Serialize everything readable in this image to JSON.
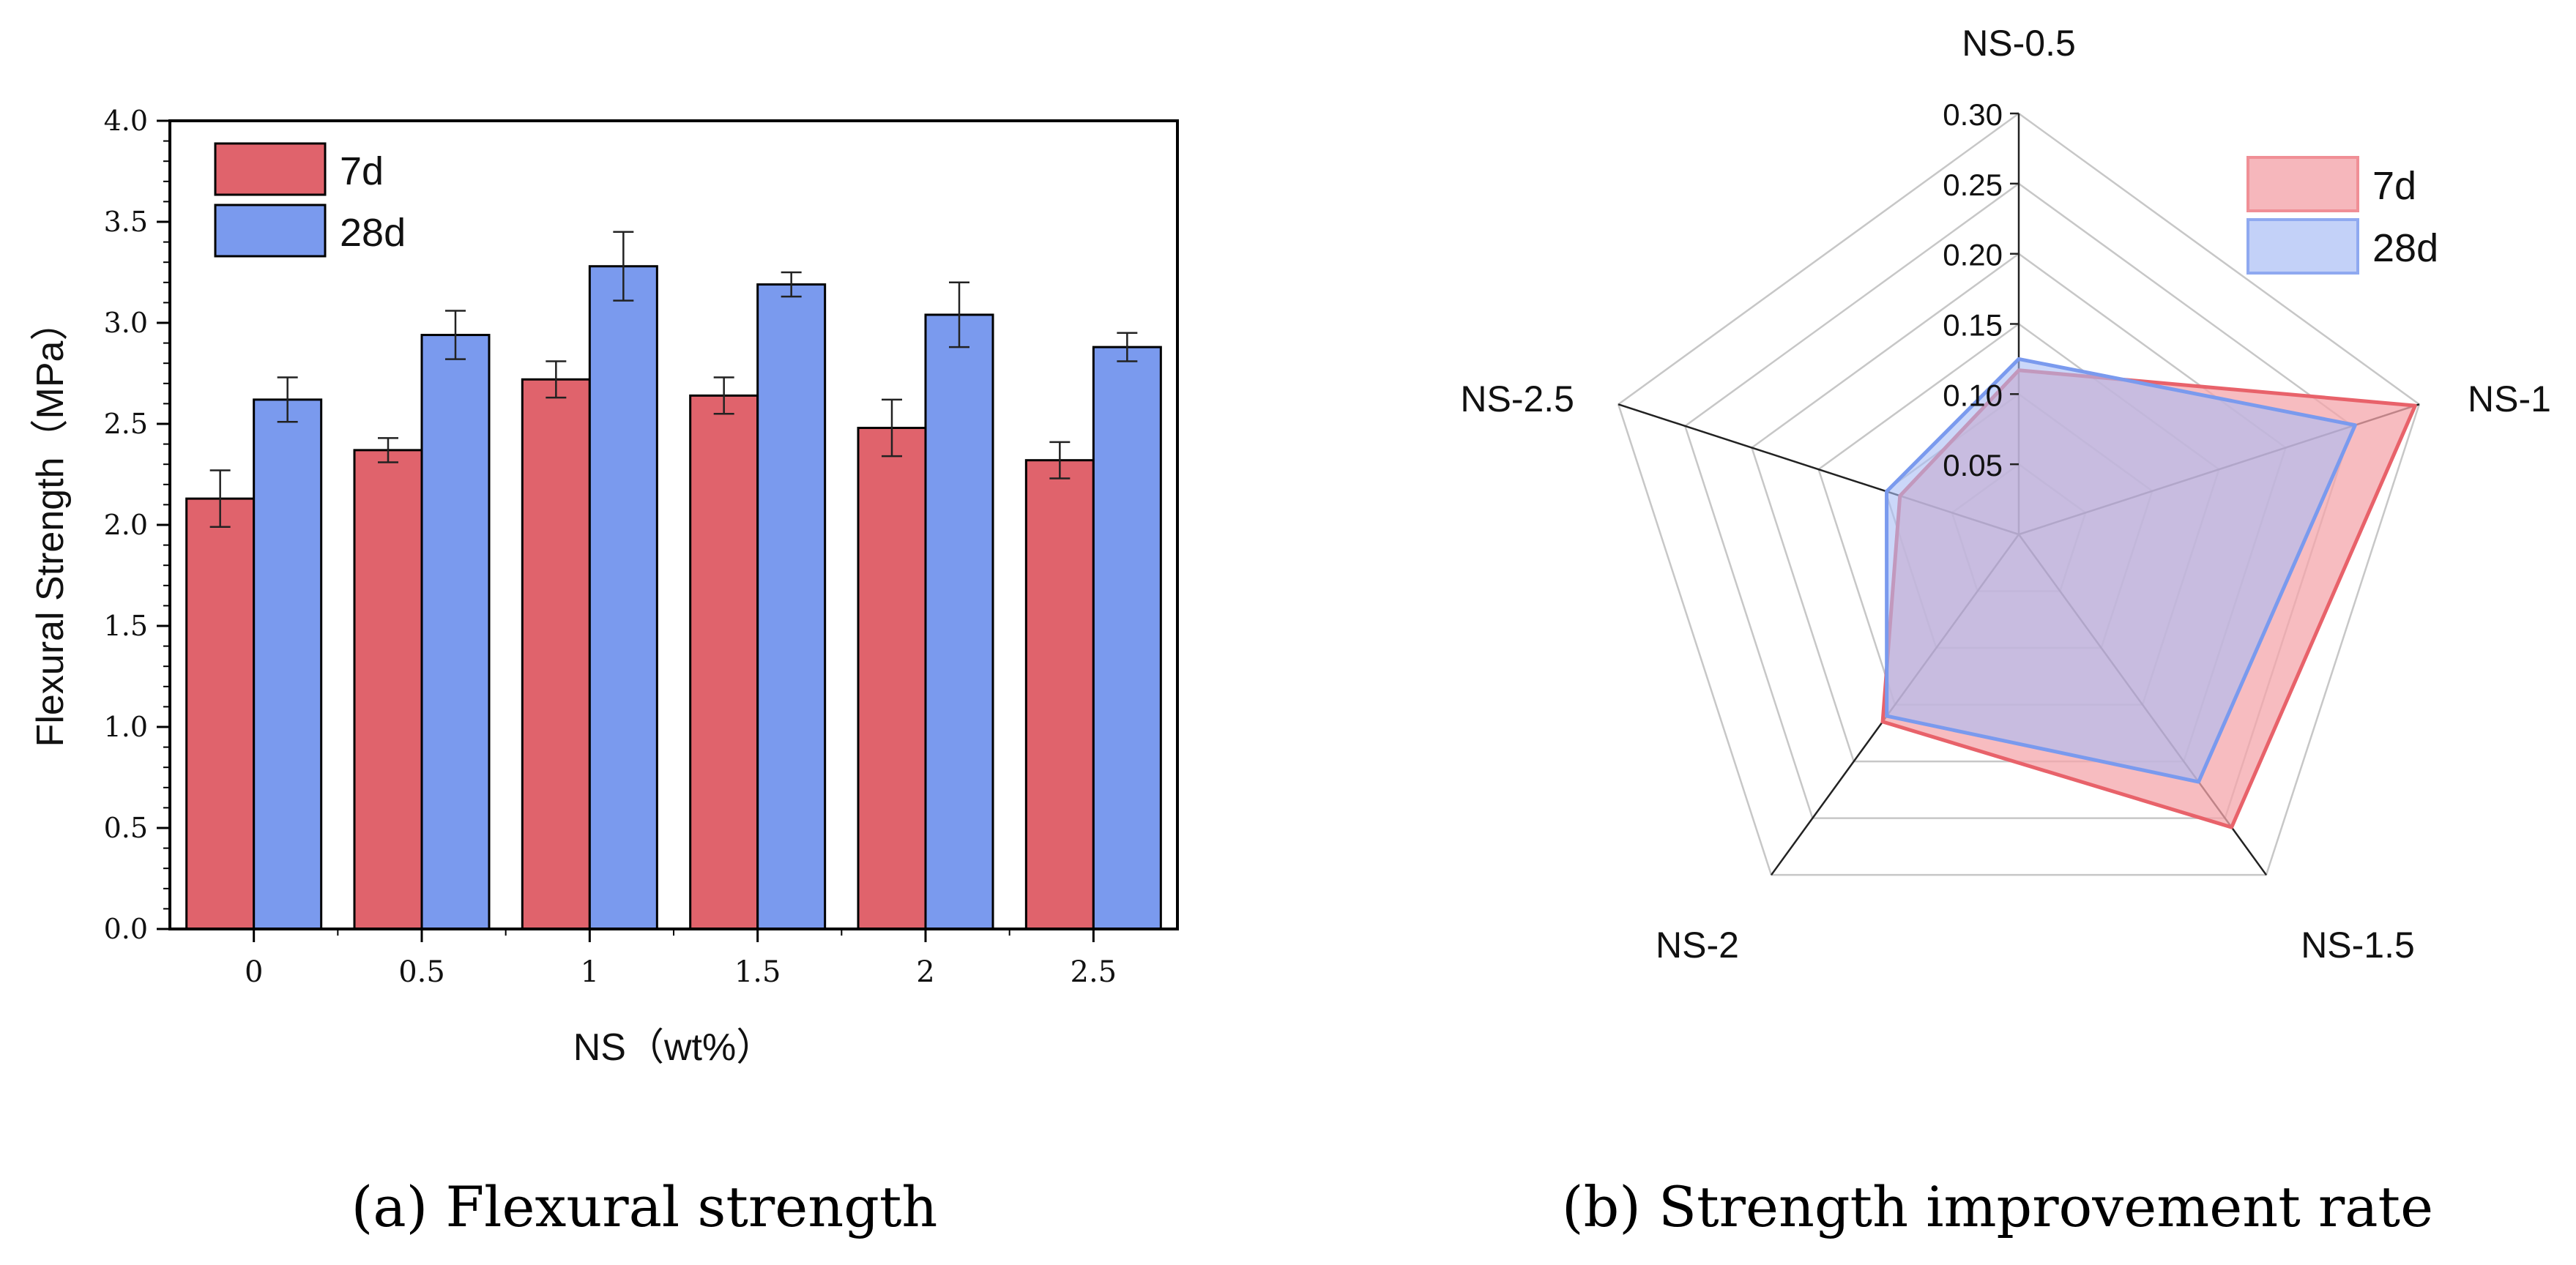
{
  "chart_data": [
    {
      "type": "bar",
      "title": "",
      "xlabel": "NS（wt%）",
      "ylabel": "Flexural Strength（MPa）",
      "categories": [
        "0",
        "0.5",
        "1",
        "1.5",
        "2",
        "2.5"
      ],
      "ylim": [
        0,
        4.0
      ],
      "yticks": [
        "0.0",
        "0.5",
        "1.0",
        "1.5",
        "2.0",
        "2.5",
        "3.0",
        "3.5",
        "4.0"
      ],
      "yticks_values": [
        0,
        0.5,
        1.0,
        1.5,
        2.0,
        2.5,
        3.0,
        3.5,
        4.0
      ],
      "series": [
        {
          "name": "7d",
          "color": "#e0636c",
          "values": [
            2.13,
            2.37,
            2.72,
            2.64,
            2.48,
            2.32
          ],
          "errors": [
            0.14,
            0.06,
            0.09,
            0.09,
            0.14,
            0.09
          ]
        },
        {
          "name": "28d",
          "color": "#7a9aee",
          "values": [
            2.62,
            2.94,
            3.28,
            3.19,
            3.04,
            2.88
          ],
          "errors": [
            0.11,
            0.12,
            0.17,
            0.06,
            0.16,
            0.07
          ]
        }
      ],
      "legend": "top-left",
      "caption": "(a) Flexural strength"
    },
    {
      "type": "radar",
      "title": "",
      "axes": [
        "NS-0.5",
        "NS-1",
        "NS-1.5",
        "NS-2",
        "NS-2.5"
      ],
      "rlim": [
        0,
        0.3
      ],
      "rticks": [
        "0.05",
        "0.10",
        "0.15",
        "0.20",
        "0.25",
        "0.30"
      ],
      "rticks_values": [
        0.05,
        0.1,
        0.15,
        0.2,
        0.25,
        0.3
      ],
      "series": [
        {
          "name": "7d",
          "color": "#e8626a",
          "fill": "#f4a5ab",
          "values": [
            0.117,
            0.297,
            0.258,
            0.165,
            0.089
          ]
        },
        {
          "name": "28d",
          "color": "#7a9aee",
          "fill": "#a9bdf5",
          "values": [
            0.125,
            0.252,
            0.218,
            0.16,
            0.099
          ]
        }
      ],
      "legend": "top-right",
      "caption": "(b) Strength improvement rate"
    }
  ]
}
